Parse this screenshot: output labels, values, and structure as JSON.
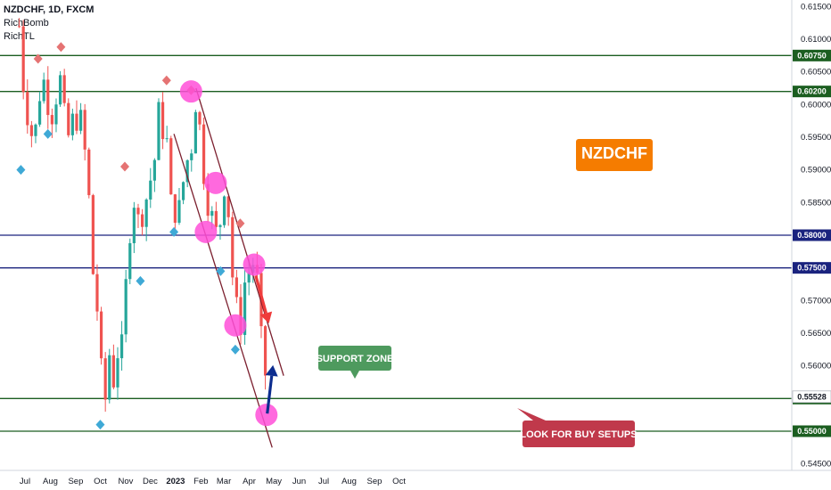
{
  "legend": {
    "symbol_line": "NZDCHF, 1D, FXCM",
    "indicator_1": "RichBomb",
    "indicator_2": "RichTL"
  },
  "chart_data": {
    "type": "candlestick",
    "title": "NZDCHF",
    "ylim": [
      0.541,
      0.616
    ],
    "y_ticks": [
      "0.61500",
      "0.61000",
      "0.60500",
      "0.60000",
      "0.59500",
      "0.59000",
      "0.58500",
      "0.57000",
      "0.56500",
      "0.56000",
      "0.54500"
    ],
    "x_ticks": [
      "Jul",
      "Aug",
      "Sep",
      "Oct",
      "Nov",
      "Dec",
      "2023",
      "Feb",
      "Mar",
      "Apr",
      "May",
      "Jun",
      "Jul",
      "Aug",
      "Sep",
      "Oct"
    ],
    "horizontal_levels": [
      {
        "price": "0.60750",
        "color": "#1b5e20"
      },
      {
        "price": "0.60200",
        "color": "#1b5e20"
      },
      {
        "price": "0.58000",
        "color": "#1a237e"
      },
      {
        "price": "0.57500",
        "color": "#1a237e"
      },
      {
        "price": "0.55500",
        "color": "#1b5e20"
      },
      {
        "price": "0.55000",
        "color": "#1b5e20"
      }
    ],
    "current_price": "0.55528",
    "annotations": {
      "name_label": "NZDCHF",
      "support_label": "SUPPORT ZONE",
      "buy_label": "LOOK FOR BUY SETUPS"
    },
    "colors": {
      "up": "#26a69a",
      "down": "#ef5350",
      "channel": "#7b1f2e",
      "touch": "#ff4fd8",
      "name_bg": "#f57c00",
      "support_bg": "#4e9a5e",
      "buy_bg": "#c0394b",
      "bearish_arrow": "#ef3b3b",
      "bullish_arrow": "#0d2d8f",
      "diamond_up": "#3fa9d6",
      "diamond_down": "#e57373"
    },
    "price_path": [
      [
        "2022-06-24",
        0.612
      ],
      [
        "2022-06-30",
        0.601
      ],
      [
        "2022-07-06",
        0.597
      ],
      [
        "2022-07-12",
        0.594
      ],
      [
        "2022-07-18",
        0.601
      ],
      [
        "2022-07-25",
        0.604
      ],
      [
        "2022-07-29",
        0.6
      ],
      [
        "2022-08-04",
        0.598
      ],
      [
        "2022-08-08",
        0.601
      ],
      [
        "2022-08-12",
        0.605
      ],
      [
        "2022-08-16",
        0.601
      ],
      [
        "2022-08-22",
        0.594
      ],
      [
        "2022-08-26",
        0.598
      ],
      [
        "2022-09-01",
        0.597
      ],
      [
        "2022-09-06",
        0.599
      ],
      [
        "2022-09-12",
        0.593
      ],
      [
        "2022-09-19",
        0.583
      ],
      [
        "2022-09-23",
        0.572
      ],
      [
        "2022-09-28",
        0.568
      ],
      [
        "2022-10-03",
        0.558
      ],
      [
        "2022-10-06",
        0.553
      ],
      [
        "2022-10-12",
        0.562
      ],
      [
        "2022-10-18",
        0.557
      ],
      [
        "2022-10-24",
        0.564
      ],
      [
        "2022-10-28",
        0.563
      ],
      [
        "2022-11-02",
        0.574
      ],
      [
        "2022-11-08",
        0.583
      ],
      [
        "2022-11-14",
        0.587
      ],
      [
        "2022-11-18",
        0.579
      ],
      [
        "2022-11-23",
        0.585
      ],
      [
        "2022-11-28",
        0.586
      ],
      [
        "2022-12-02",
        0.589
      ],
      [
        "2022-12-07",
        0.592
      ],
      [
        "2022-12-12",
        0.6
      ],
      [
        "2022-12-16",
        0.596
      ],
      [
        "2022-12-21",
        0.595
      ],
      [
        "2022-12-27",
        0.584
      ],
      [
        "2023-01-03",
        0.583
      ],
      [
        "2023-01-09",
        0.586
      ],
      [
        "2023-01-13",
        0.592
      ],
      [
        "2023-01-18",
        0.591
      ],
      [
        "2023-01-23",
        0.596
      ],
      [
        "2023-01-26",
        0.601
      ],
      [
        "2023-01-31",
        0.596
      ],
      [
        "2023-02-03",
        0.591
      ],
      [
        "2023-02-08",
        0.585
      ],
      [
        "2023-02-13",
        0.584
      ],
      [
        "2023-02-17",
        0.581
      ],
      [
        "2023-02-22",
        0.58
      ],
      [
        "2023-02-27",
        0.584
      ],
      [
        "2023-03-02",
        0.588
      ],
      [
        "2023-03-07",
        0.583
      ],
      [
        "2023-03-10",
        0.575
      ],
      [
        "2023-03-15",
        0.571
      ],
      [
        "2023-03-20",
        0.565
      ],
      [
        "2023-03-23",
        0.567
      ],
      [
        "2023-03-28",
        0.575
      ],
      [
        "2023-04-03",
        0.574
      ],
      [
        "2023-04-06",
        0.576
      ],
      [
        "2023-04-11",
        0.573
      ],
      [
        "2023-04-14",
        0.566
      ],
      [
        "2023-04-19",
        0.561
      ],
      [
        "2023-04-23",
        0.5555
      ]
    ]
  }
}
